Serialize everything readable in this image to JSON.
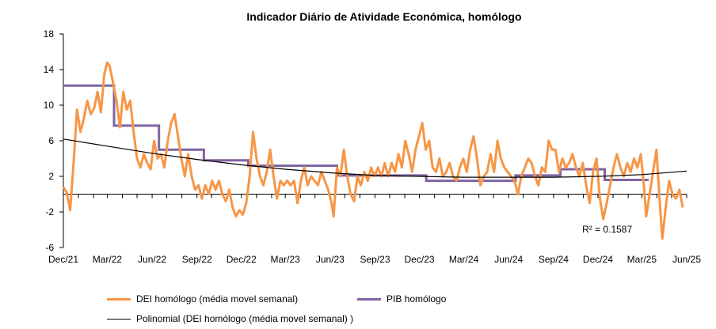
{
  "chart_data": {
    "type": "line",
    "title": "Indicador Diário de Atividade Económica, homólogo",
    "xlabel": "",
    "ylabel": "",
    "xlim": [
      "2021-12-01",
      "2025-06-01"
    ],
    "ylim": [
      -6,
      18
    ],
    "y_ticks": [
      -6,
      -2,
      2,
      6,
      10,
      14,
      18
    ],
    "y_tick_labels": [
      "-6",
      "-2",
      "2",
      "6",
      "10",
      "14",
      "18"
    ],
    "x_ticks": [
      "2021-12-01",
      "2022-03-01",
      "2022-06-01",
      "2022-09-01",
      "2022-12-01",
      "2023-03-01",
      "2023-06-01",
      "2023-09-01",
      "2023-12-01",
      "2024-03-01",
      "2024-06-01",
      "2024-09-01",
      "2024-12-01",
      "2025-03-01",
      "2025-06-01"
    ],
    "x_tick_labels": [
      "Dec/21",
      "Mar/22",
      "Jun/22",
      "Sep/22",
      "Dec/22",
      "Mar/23",
      "Jun/23",
      "Sep/23",
      "Dec/23",
      "Mar/24",
      "Jun/24",
      "Sep/24",
      "Dec/24",
      "Mar/25",
      "Jun/25"
    ],
    "grid": false,
    "legend_position": "bottom",
    "series": [
      {
        "name": "DEI homólogo (média movel semanal)",
        "color": "#f79646",
        "kind": "line",
        "points": [
          [
            "2021-12-01",
            0.8
          ],
          [
            "2021-12-08",
            0.2
          ],
          [
            "2021-12-15",
            -1.8
          ],
          [
            "2021-12-22",
            3.5
          ],
          [
            "2021-12-29",
            9.5
          ],
          [
            "2022-01-05",
            7.0
          ],
          [
            "2022-01-12",
            8.5
          ],
          [
            "2022-01-19",
            10.5
          ],
          [
            "2022-01-26",
            9.0
          ],
          [
            "2022-02-02",
            9.6
          ],
          [
            "2022-02-09",
            11.5
          ],
          [
            "2022-02-16",
            9.2
          ],
          [
            "2022-02-23",
            13.5
          ],
          [
            "2022-03-01",
            14.8
          ],
          [
            "2022-03-06",
            14.4
          ],
          [
            "2022-03-13",
            12.5
          ],
          [
            "2022-03-20",
            10.5
          ],
          [
            "2022-03-27",
            7.5
          ],
          [
            "2022-04-03",
            11.5
          ],
          [
            "2022-04-10",
            9.5
          ],
          [
            "2022-04-17",
            10.5
          ],
          [
            "2022-04-24",
            7.0
          ],
          [
            "2022-05-01",
            4.0
          ],
          [
            "2022-05-08",
            3.0
          ],
          [
            "2022-05-15",
            4.5
          ],
          [
            "2022-05-22",
            3.5
          ],
          [
            "2022-05-29",
            2.8
          ],
          [
            "2022-06-05",
            6.0
          ],
          [
            "2022-06-12",
            4.0
          ],
          [
            "2022-06-19",
            4.5
          ],
          [
            "2022-06-26",
            3.0
          ],
          [
            "2022-07-03",
            6.0
          ],
          [
            "2022-07-10",
            8.0
          ],
          [
            "2022-07-17",
            9.0
          ],
          [
            "2022-07-24",
            6.5
          ],
          [
            "2022-07-31",
            4.0
          ],
          [
            "2022-08-07",
            2.0
          ],
          [
            "2022-08-14",
            4.5
          ],
          [
            "2022-08-21",
            2.0
          ],
          [
            "2022-08-28",
            0.5
          ],
          [
            "2022-09-04",
            1.0
          ],
          [
            "2022-09-11",
            -0.5
          ],
          [
            "2022-09-18",
            1.0
          ],
          [
            "2022-09-25",
            0.0
          ],
          [
            "2022-10-02",
            1.5
          ],
          [
            "2022-10-09",
            0.5
          ],
          [
            "2022-10-16",
            1.5
          ],
          [
            "2022-10-23",
            0.0
          ],
          [
            "2022-10-30",
            -0.8
          ],
          [
            "2022-11-06",
            0.5
          ],
          [
            "2022-11-13",
            -1.5
          ],
          [
            "2022-11-20",
            -2.5
          ],
          [
            "2022-11-27",
            -1.8
          ],
          [
            "2022-12-04",
            -2.3
          ],
          [
            "2022-12-11",
            -1.0
          ],
          [
            "2022-12-18",
            2.0
          ],
          [
            "2022-12-25",
            7.0
          ],
          [
            "2023-01-01",
            4.0
          ],
          [
            "2023-01-08",
            2.0
          ],
          [
            "2023-01-15",
            1.0
          ],
          [
            "2023-01-22",
            2.5
          ],
          [
            "2023-01-29",
            5.0
          ],
          [
            "2023-02-05",
            2.0
          ],
          [
            "2023-02-12",
            -0.5
          ],
          [
            "2023-02-19",
            1.5
          ],
          [
            "2023-02-26",
            1.0
          ],
          [
            "2023-03-05",
            1.5
          ],
          [
            "2023-03-12",
            1.0
          ],
          [
            "2023-03-19",
            1.5
          ],
          [
            "2023-03-26",
            -1.0
          ],
          [
            "2023-04-02",
            1.5
          ],
          [
            "2023-04-09",
            3.0
          ],
          [
            "2023-04-16",
            1.0
          ],
          [
            "2023-04-23",
            2.0
          ],
          [
            "2023-04-30",
            1.5
          ],
          [
            "2023-05-07",
            1.0
          ],
          [
            "2023-05-14",
            2.5
          ],
          [
            "2023-05-21",
            1.5
          ],
          [
            "2023-05-28",
            0.5
          ],
          [
            "2023-06-04",
            -1.0
          ],
          [
            "2023-06-08",
            -2.5
          ],
          [
            "2023-06-15",
            3.0
          ],
          [
            "2023-06-22",
            2.0
          ],
          [
            "2023-06-29",
            5.0
          ],
          [
            "2023-07-06",
            2.0
          ],
          [
            "2023-07-13",
            0.0
          ],
          [
            "2023-07-20",
            -0.8
          ],
          [
            "2023-07-27",
            2.0
          ],
          [
            "2023-08-03",
            1.0
          ],
          [
            "2023-08-10",
            2.5
          ],
          [
            "2023-08-17",
            1.5
          ],
          [
            "2023-08-24",
            3.0
          ],
          [
            "2023-08-31",
            2.0
          ],
          [
            "2023-09-07",
            3.0
          ],
          [
            "2023-09-14",
            2.0
          ],
          [
            "2023-09-21",
            3.5
          ],
          [
            "2023-09-28",
            2.0
          ],
          [
            "2023-10-05",
            3.5
          ],
          [
            "2023-10-12",
            2.5
          ],
          [
            "2023-10-19",
            4.5
          ],
          [
            "2023-10-26",
            3.0
          ],
          [
            "2023-11-02",
            6.0
          ],
          [
            "2023-11-09",
            4.5
          ],
          [
            "2023-11-16",
            2.5
          ],
          [
            "2023-11-23",
            5.0
          ],
          [
            "2023-11-30",
            6.5
          ],
          [
            "2023-12-07",
            8.0
          ],
          [
            "2023-12-14",
            5.0
          ],
          [
            "2023-12-21",
            6.0
          ],
          [
            "2023-12-28",
            3.0
          ],
          [
            "2024-01-04",
            2.5
          ],
          [
            "2024-01-11",
            4.0
          ],
          [
            "2024-01-18",
            2.0
          ],
          [
            "2024-01-25",
            2.5
          ],
          [
            "2024-02-01",
            3.5
          ],
          [
            "2024-02-08",
            2.0
          ],
          [
            "2024-02-15",
            1.5
          ],
          [
            "2024-02-22",
            3.0
          ],
          [
            "2024-02-29",
            4.0
          ],
          [
            "2024-03-07",
            2.5
          ],
          [
            "2024-03-14",
            5.0
          ],
          [
            "2024-03-21",
            6.5
          ],
          [
            "2024-03-28",
            4.0
          ],
          [
            "2024-04-04",
            1.0
          ],
          [
            "2024-04-11",
            2.0
          ],
          [
            "2024-04-18",
            2.5
          ],
          [
            "2024-04-25",
            4.5
          ],
          [
            "2024-05-02",
            2.5
          ],
          [
            "2024-05-09",
            6.0
          ],
          [
            "2024-05-16",
            4.0
          ],
          [
            "2024-05-23",
            3.0
          ],
          [
            "2024-05-30",
            2.5
          ],
          [
            "2024-06-06",
            2.0
          ],
          [
            "2024-06-13",
            1.5
          ],
          [
            "2024-06-20",
            0.0
          ],
          [
            "2024-06-27",
            2.0
          ],
          [
            "2024-07-04",
            3.0
          ],
          [
            "2024-07-11",
            4.0
          ],
          [
            "2024-07-18",
            3.5
          ],
          [
            "2024-07-25",
            2.0
          ],
          [
            "2024-08-01",
            1.0
          ],
          [
            "2024-08-08",
            3.0
          ],
          [
            "2024-08-15",
            2.5
          ],
          [
            "2024-08-22",
            6.0
          ],
          [
            "2024-08-29",
            5.0
          ],
          [
            "2024-09-05",
            5.0
          ],
          [
            "2024-09-12",
            2.5
          ],
          [
            "2024-09-19",
            4.0
          ],
          [
            "2024-09-26",
            3.0
          ],
          [
            "2024-10-03",
            3.5
          ],
          [
            "2024-10-10",
            4.5
          ],
          [
            "2024-10-17",
            3.0
          ],
          [
            "2024-10-24",
            2.0
          ],
          [
            "2024-10-31",
            3.5
          ],
          [
            "2024-11-07",
            1.0
          ],
          [
            "2024-11-14",
            -1.0
          ],
          [
            "2024-11-21",
            2.5
          ],
          [
            "2024-11-28",
            4.0
          ],
          [
            "2024-12-05",
            -0.5
          ],
          [
            "2024-12-12",
            -2.8
          ],
          [
            "2024-12-19",
            -1.0
          ],
          [
            "2024-12-26",
            1.0
          ],
          [
            "2025-01-02",
            3.0
          ],
          [
            "2025-01-09",
            4.5
          ],
          [
            "2025-01-16",
            3.0
          ],
          [
            "2025-01-23",
            2.0
          ],
          [
            "2025-01-30",
            3.5
          ],
          [
            "2025-02-06",
            2.5
          ],
          [
            "2025-02-13",
            4.0
          ],
          [
            "2025-02-20",
            3.0
          ],
          [
            "2025-02-27",
            4.5
          ],
          [
            "2025-03-06",
            0.5
          ],
          [
            "2025-03-10",
            -2.5
          ],
          [
            "2025-03-17",
            0.0
          ],
          [
            "2025-03-24",
            2.5
          ],
          [
            "2025-03-31",
            5.0
          ],
          [
            "2025-04-07",
            -1.0
          ],
          [
            "2025-04-12",
            -5.0
          ],
          [
            "2025-04-19",
            -1.5
          ],
          [
            "2025-04-26",
            1.5
          ],
          [
            "2025-05-03",
            0.0
          ],
          [
            "2025-05-10",
            -0.5
          ],
          [
            "2025-05-17",
            0.5
          ],
          [
            "2025-05-24",
            -1.5
          ]
        ]
      },
      {
        "name": "PIB homólogo",
        "color": "#8064a2",
        "kind": "step",
        "steps": [
          {
            "from": "2021-12-01",
            "to": "2022-03-15",
            "value": 12.2
          },
          {
            "from": "2022-03-15",
            "to": "2022-06-15",
            "value": 7.7
          },
          {
            "from": "2022-06-15",
            "to": "2022-09-15",
            "value": 5.0
          },
          {
            "from": "2022-09-15",
            "to": "2022-12-15",
            "value": 3.8
          },
          {
            "from": "2022-12-15",
            "to": "2023-06-15",
            "value": 3.2
          },
          {
            "from": "2023-06-15",
            "to": "2023-09-15",
            "value": 2.1
          },
          {
            "from": "2023-09-15",
            "to": "2023-12-15",
            "value": 2.1
          },
          {
            "from": "2023-12-15",
            "to": "2024-06-15",
            "value": 1.5
          },
          {
            "from": "2024-06-15",
            "to": "2024-09-15",
            "value": 2.1
          },
          {
            "from": "2024-09-15",
            "to": "2024-12-15",
            "value": 2.8
          },
          {
            "from": "2024-12-15",
            "to": "2025-03-15",
            "value": 1.6
          }
        ]
      },
      {
        "name": "Polinomial (DEI homólogo (média movel semanal) )",
        "color": "#000000",
        "kind": "trend",
        "points": [
          [
            "2021-12-01",
            6.2
          ],
          [
            "2022-03-01",
            5.4
          ],
          [
            "2022-06-01",
            4.6
          ],
          [
            "2022-09-01",
            3.9
          ],
          [
            "2022-12-01",
            3.3
          ],
          [
            "2023-03-01",
            2.8
          ],
          [
            "2023-06-01",
            2.4
          ],
          [
            "2023-09-01",
            2.1
          ],
          [
            "2023-12-01",
            2.0
          ],
          [
            "2024-03-01",
            1.9
          ],
          [
            "2024-06-01",
            1.9
          ],
          [
            "2024-09-01",
            1.9
          ],
          [
            "2024-12-01",
            2.0
          ],
          [
            "2025-03-01",
            2.2
          ],
          [
            "2025-06-01",
            2.6
          ]
        ]
      }
    ],
    "annotations": [
      {
        "text": "R² = 0.1587",
        "at": [
          "2024-12-20",
          -4.3
        ]
      }
    ]
  },
  "legend": {
    "dei_label": "DEI homólogo (média movel semanal)",
    "pib_label": "PIB homólogo",
    "poly_label": "Polinomial (DEI homólogo (média movel semanal) )"
  }
}
